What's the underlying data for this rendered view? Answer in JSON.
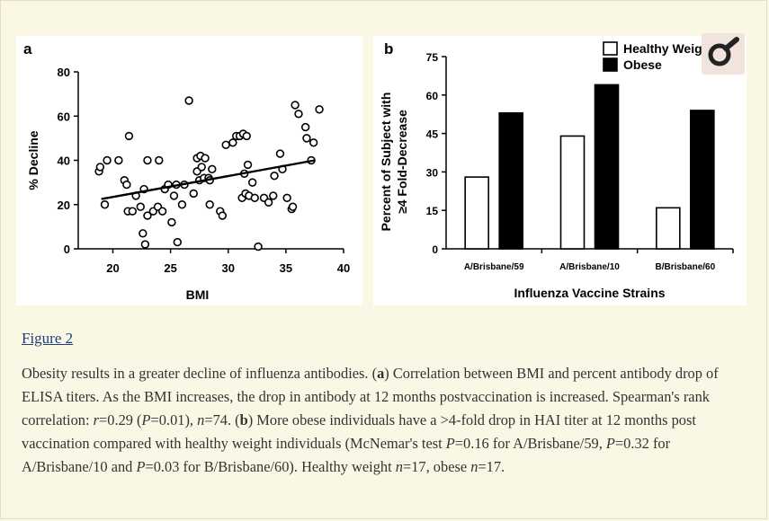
{
  "figure_link": "Figure 2",
  "caption": {
    "t1": "Obesity results in a greater decline of influenza antibodies. (",
    "a": "a",
    "t2": ") Correlation between BMI and percent antibody drop of ELISA titers. As the BMI increases, the drop in antibody at 12 months postvaccination is increased. Spearman's rank correlation: ",
    "r": "r",
    "t3": "=0.29 (",
    "p1": "P",
    "t4": "=0.01), ",
    "n1": "n",
    "t5": "=74. (",
    "b": "b",
    "t6": ") More obese individuals have a >4-fold drop in HAI titer at 12 months post vaccination compared with healthy weight individuals (McNemar's test ",
    "p2": "P",
    "t7": "=0.16 for A/Brisbane/59, ",
    "p3": "P",
    "t8": "=0.32 for A/Brisbane/10 and ",
    "p4": "P",
    "t9": "=0.03 for B/Brisbane/60). Healthy weight ",
    "n2": "n",
    "t10": "=17, obese ",
    "n3": "n",
    "t11": "=17."
  },
  "icons": {
    "zoom": "magnifier-icon"
  },
  "colors": {
    "background": "#fbf7e5",
    "plot_bg": "#ffffff",
    "ink": "#000000",
    "link": "#1a3d7c"
  },
  "chart_data": [
    {
      "type": "scatter",
      "panel_label": "a",
      "xlabel": "BMI",
      "ylabel": "% Decline",
      "xlim": [
        17,
        40
      ],
      "ylim": [
        0,
        80
      ],
      "xticks": [
        20,
        25,
        30,
        35,
        40
      ],
      "yticks": [
        0,
        20,
        40,
        60,
        80
      ],
      "trend_line": {
        "x": [
          19,
          37.5
        ],
        "y": [
          22.5,
          40
        ]
      },
      "points": [
        [
          18.8,
          35
        ],
        [
          18.9,
          37
        ],
        [
          19.3,
          20
        ],
        [
          19.5,
          40
        ],
        [
          20.5,
          40
        ],
        [
          21,
          31
        ],
        [
          21.2,
          29
        ],
        [
          21.4,
          51
        ],
        [
          21.3,
          17
        ],
        [
          21.7,
          17
        ],
        [
          22,
          24
        ],
        [
          22.4,
          19
        ],
        [
          22.7,
          27
        ],
        [
          22.6,
          7
        ],
        [
          22.8,
          2
        ],
        [
          23,
          40
        ],
        [
          23,
          15
        ],
        [
          23.5,
          17
        ],
        [
          23.9,
          19
        ],
        [
          24,
          40
        ],
        [
          24.3,
          17
        ],
        [
          24.5,
          27
        ],
        [
          24.8,
          29
        ],
        [
          25.1,
          12
        ],
        [
          25.3,
          24
        ],
        [
          25.5,
          29
        ],
        [
          25.6,
          3
        ],
        [
          26,
          20
        ],
        [
          26.2,
          29
        ],
        [
          26.6,
          67
        ],
        [
          27,
          25
        ],
        [
          27.3,
          41
        ],
        [
          27.6,
          42
        ],
        [
          27.3,
          35
        ],
        [
          27.5,
          31
        ],
        [
          27.7,
          37
        ],
        [
          27.9,
          32
        ],
        [
          28,
          41
        ],
        [
          28.3,
          32
        ],
        [
          28.4,
          31
        ],
        [
          28.6,
          36
        ],
        [
          28.4,
          20
        ],
        [
          29.3,
          17
        ],
        [
          29.5,
          15
        ],
        [
          29.8,
          47
        ],
        [
          30.4,
          48
        ],
        [
          30.7,
          51
        ],
        [
          31,
          51
        ],
        [
          31.3,
          52
        ],
        [
          31.6,
          51
        ],
        [
          31.2,
          23
        ],
        [
          31.5,
          25
        ],
        [
          31.8,
          24
        ],
        [
          31.4,
          34
        ],
        [
          31.7,
          38
        ],
        [
          32.1,
          30
        ],
        [
          32.3,
          23
        ],
        [
          32.6,
          1
        ],
        [
          33.1,
          23
        ],
        [
          33.5,
          21
        ],
        [
          33.9,
          24
        ],
        [
          34,
          33
        ],
        [
          34.5,
          43
        ],
        [
          34.7,
          36
        ],
        [
          35.1,
          23
        ],
        [
          35.5,
          18
        ],
        [
          35.6,
          19
        ],
        [
          35.8,
          65
        ],
        [
          36.1,
          61
        ],
        [
          36.7,
          55
        ],
        [
          36.8,
          50
        ],
        [
          37.2,
          40
        ],
        [
          37.4,
          48
        ],
        [
          37.9,
          63
        ]
      ]
    },
    {
      "type": "bar",
      "panel_label": "b",
      "xlabel": "Influenza Vaccine Strains",
      "ylabel_line1": "Percent of Subject with",
      "ylabel_line2": "≥4 Fold-Decrease",
      "categories": [
        "A/Brisbane/59",
        "A/Brisbane/10",
        "B/Brisbane/60"
      ],
      "ylim": [
        0,
        75
      ],
      "yticks": [
        0,
        15,
        30,
        45,
        60,
        75
      ],
      "series": [
        {
          "name": "Healthy Weight",
          "color": "#ffffff",
          "values": [
            28,
            44,
            16
          ]
        },
        {
          "name": "Obese",
          "color": "#000000",
          "values": [
            53,
            64,
            54
          ]
        }
      ]
    }
  ]
}
